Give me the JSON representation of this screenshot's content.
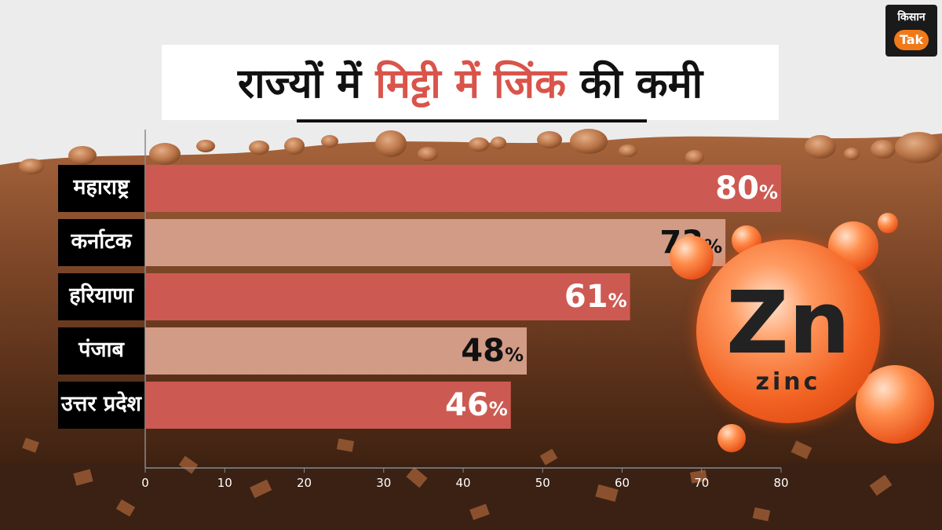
{
  "brand": {
    "line1": "किसान",
    "line2": "Tak"
  },
  "title": {
    "part1": "राज्यों में ",
    "part2": "मिट्टी में जिंक",
    "part3": " की कमी"
  },
  "element": {
    "symbol": "Zn",
    "name": "zinc"
  },
  "colors": {
    "accent": "#d9544a",
    "bar_dark": "#cd5a52",
    "bar_light": "#d29b85"
  },
  "chart_data": {
    "type": "bar",
    "orientation": "horizontal",
    "categories": [
      "महाराष्ट्र",
      "कर्नाटक",
      "हरियाणा",
      "पंजाब",
      "उत्तर प्रदेश"
    ],
    "values": [
      80,
      73,
      61,
      48,
      46
    ],
    "value_suffix": "%",
    "title": "राज्यों में मिट्टी में जिंक की कमी",
    "xlim": [
      0,
      80
    ],
    "xticks": [
      "0",
      "10",
      "20",
      "30",
      "40",
      "50",
      "60",
      "70",
      "80"
    ],
    "grid": false,
    "legend": "none"
  }
}
